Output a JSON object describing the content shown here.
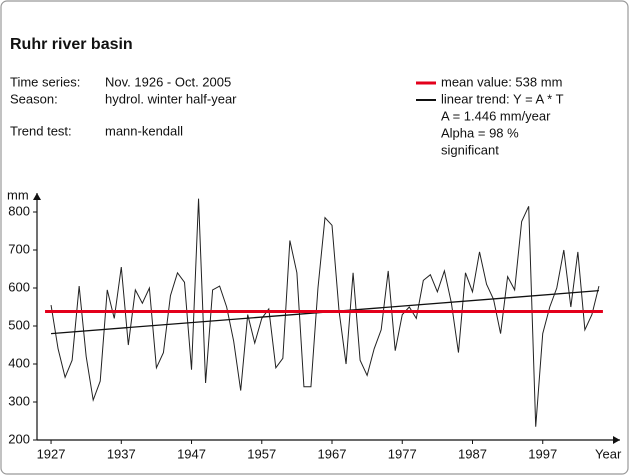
{
  "chart_data": {
    "type": "line",
    "title": "Ruhr river basin",
    "info": [
      {
        "label": "Time series:",
        "value": "Nov. 1926 - Oct. 2005"
      },
      {
        "label": "Season:",
        "value": "hydrol. winter half-year"
      },
      {
        "label": "Trend test:",
        "value": "mann-kendall"
      }
    ],
    "legend": [
      {
        "text": "mean value: 538 mm",
        "color": "#e3001b"
      },
      {
        "text": "linear trend: Y = A * T",
        "color": "#111111"
      }
    ],
    "trend_notes": [
      "A = 1.446 mm/year",
      "Alpha = 98 %",
      "significant"
    ],
    "y_label": "mm",
    "x_label": "Year",
    "x": [
      1927,
      1928,
      1929,
      1930,
      1931,
      1932,
      1933,
      1934,
      1935,
      1936,
      1937,
      1938,
      1939,
      1940,
      1941,
      1942,
      1943,
      1944,
      1945,
      1946,
      1947,
      1948,
      1949,
      1950,
      1951,
      1952,
      1953,
      1954,
      1955,
      1956,
      1957,
      1958,
      1959,
      1960,
      1961,
      1962,
      1963,
      1964,
      1965,
      1966,
      1967,
      1968,
      1969,
      1970,
      1971,
      1972,
      1973,
      1974,
      1975,
      1976,
      1977,
      1978,
      1979,
      1980,
      1981,
      1982,
      1983,
      1984,
      1985,
      1986,
      1987,
      1988,
      1989,
      1990,
      1991,
      1992,
      1993,
      1994,
      1995,
      1996,
      1997,
      1998,
      1999,
      2000,
      2001,
      2002,
      2003,
      2004,
      2005
    ],
    "series": [
      {
        "color": "#222222",
        "values": [
          555,
          440,
          365,
          410,
          605,
          420,
          305,
          355,
          595,
          520,
          655,
          450,
          595,
          560,
          600,
          390,
          430,
          580,
          640,
          615,
          385,
          835,
          350,
          595,
          605,
          550,
          460,
          330,
          530,
          455,
          520,
          545,
          390,
          415,
          725,
          640,
          340,
          340,
          600,
          785,
          765,
          540,
          400,
          640,
          410,
          370,
          440,
          490,
          645,
          435,
          530,
          550,
          520,
          620,
          635,
          590,
          645,
          560,
          430,
          640,
          590,
          695,
          610,
          570,
          480,
          630,
          595,
          775,
          815,
          235,
          480,
          550,
          600,
          700,
          550,
          695,
          490,
          530,
          605
        ]
      }
    ],
    "mean_line": {
      "value": 538,
      "color": "#e3001b"
    },
    "trend_line": {
      "x": [
        1927,
        2005
      ],
      "values": [
        480,
        593
      ],
      "color": "#111111"
    },
    "xlim": [
      1925,
      2008
    ],
    "ylim": [
      200,
      850
    ],
    "xticks": [
      1927,
      1937,
      1947,
      1957,
      1967,
      1977,
      1987,
      1997
    ],
    "yticks": [
      200,
      300,
      400,
      500,
      600,
      700,
      800
    ]
  }
}
